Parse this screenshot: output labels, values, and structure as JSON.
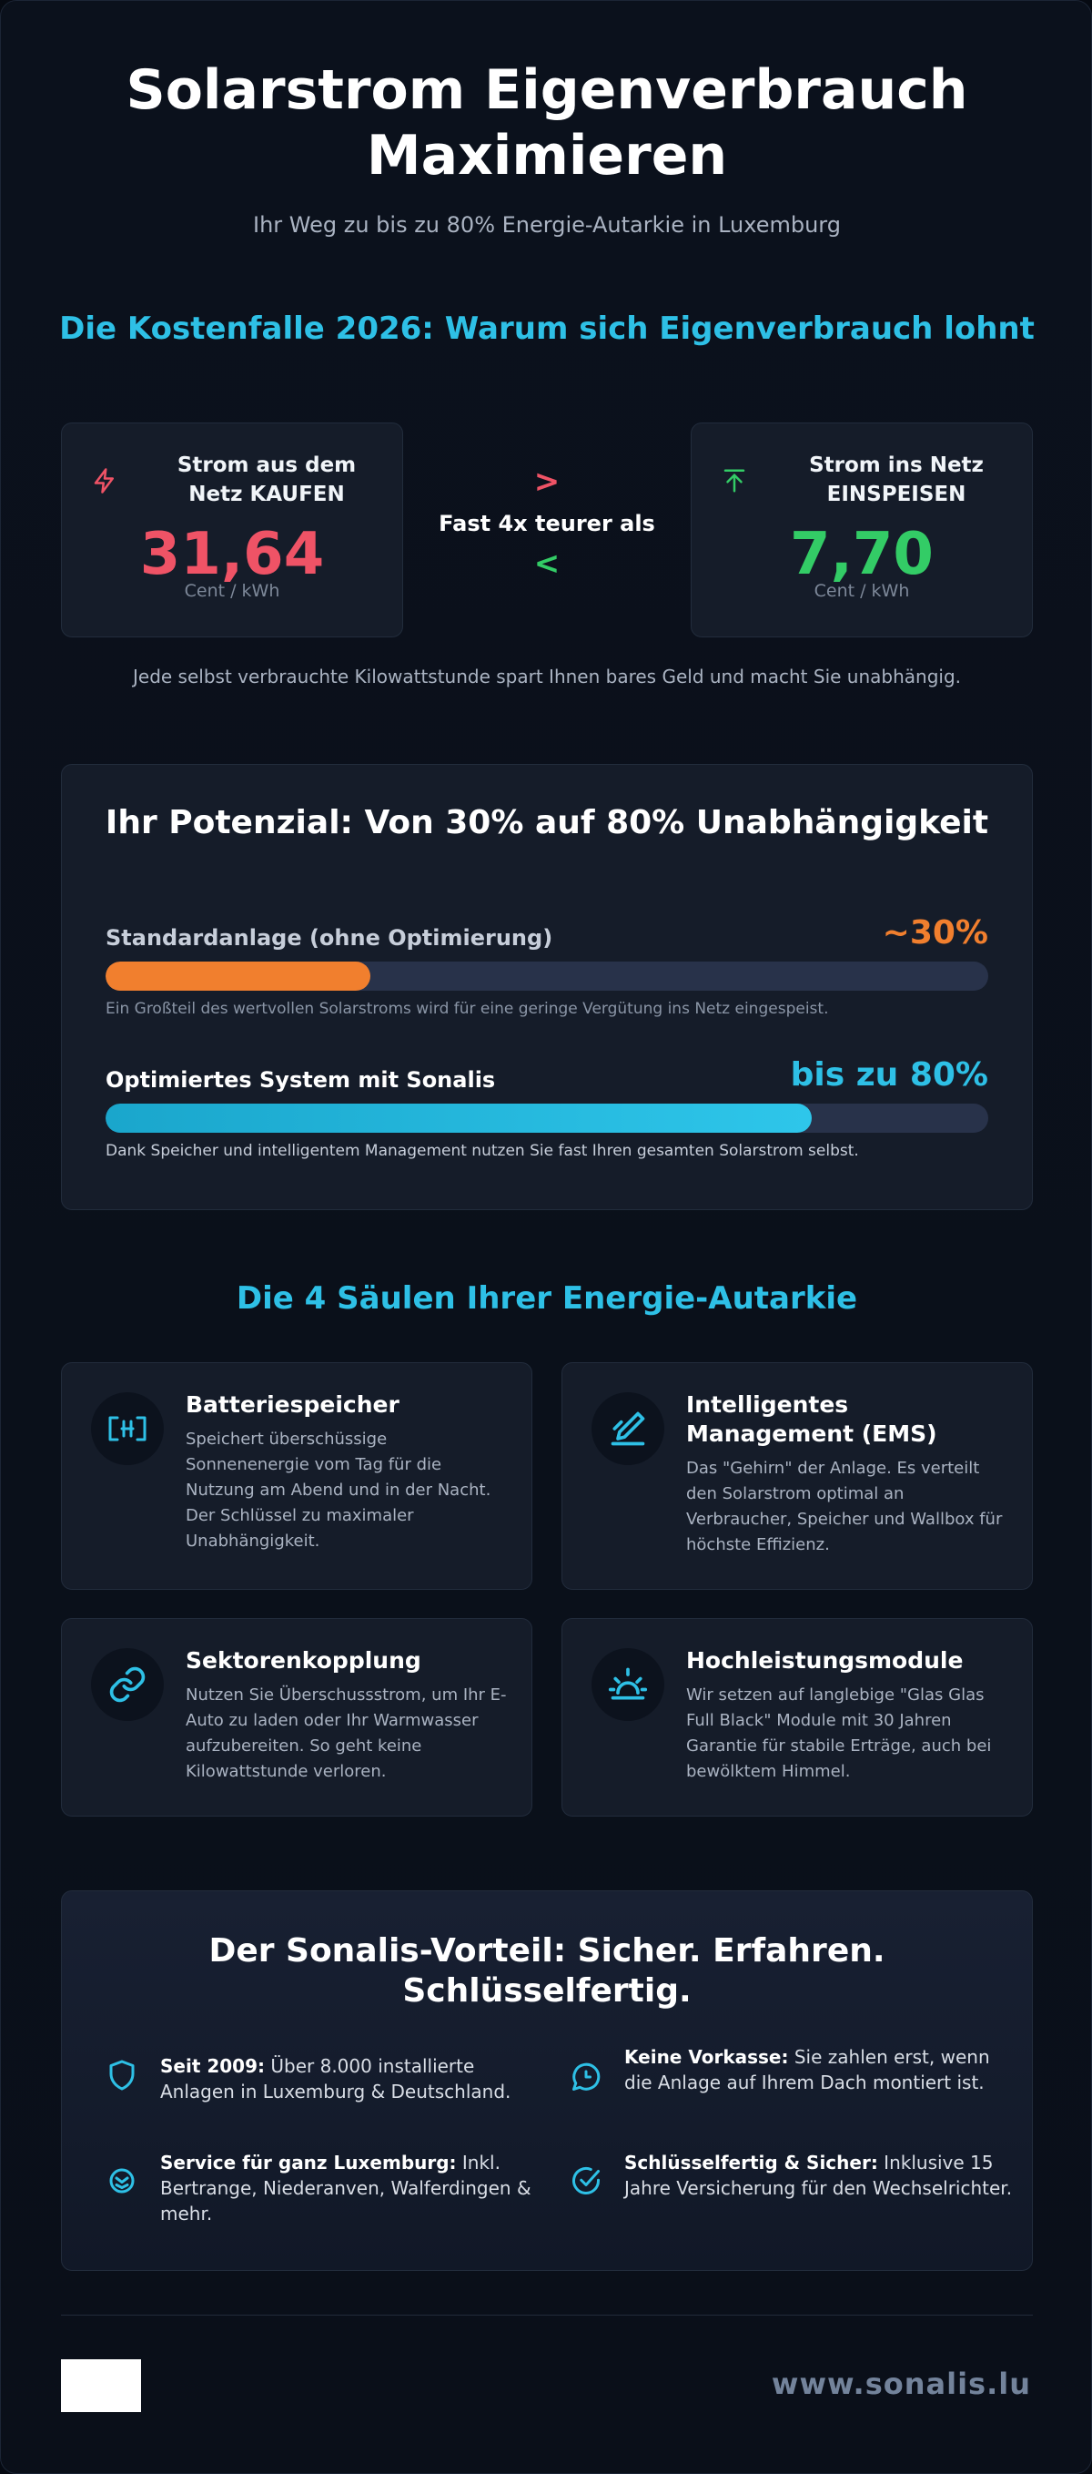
{
  "header": {
    "title": "Solarstrom Eigenverbrauch Maximieren",
    "subtitle": "Ihr Weg zu bis zu 80% Energie-Autarkie in Luxemburg"
  },
  "costs": {
    "heading": "Die Kostenfalle 2026: Warum sich Eigenverbrauch lohnt",
    "buy": {
      "label": "Strom aus dem Netz KAUFEN",
      "value": "31,64",
      "unit": "Cent / kWh",
      "icon": "lightning-icon",
      "color": "#ef5366"
    },
    "sell": {
      "label": "Strom ins Netz EINSPEISEN",
      "value": "7,70",
      "unit": "Cent / kWh",
      "icon": "upload-arrow-icon",
      "color": "#33cc66"
    },
    "comparison": "Fast 4x teurer als",
    "greater_symbol": ">",
    "less_symbol": "<",
    "note": "Jede selbst verbrauchte Kilowattstunde spart Ihnen bares Geld und macht Sie unabhängig."
  },
  "potential": {
    "title": "Ihr Potenzial: Von 30% auf 80% Unabhängigkeit",
    "standard": {
      "label": "Standardanlage (ohne Optimierung)",
      "percent_label": "~30%",
      "level": 0.3,
      "color": "#f17f2e",
      "description": "Ein Großteil des wertvollen Solarstroms wird für eine geringe Vergütung ins Netz eingespeist."
    },
    "optimized": {
      "label": "Optimiertes System mit Sonalis",
      "percent_label": "bis zu 80%",
      "level": 0.8,
      "color": "#2ec0e6",
      "description": "Dank Speicher und intelligentem Management nutzen Sie fast Ihren gesamten Solarstrom selbst."
    }
  },
  "pillars": {
    "heading": "Die 4 Säulen Ihrer Energie-Autarkie",
    "items": [
      {
        "title": "Batteriespeicher",
        "description": "Speichert überschüssige Sonnenenergie vom Tag für die Nutzung am Abend und in der Nacht. Der Schlüssel zu maximaler Unabhängigkeit.",
        "icon": "battery-icon"
      },
      {
        "title": "Intelligentes Management (EMS)",
        "description": "Das \"Gehirn\" der Anlage. Es verteilt den Solarstrom optimal an Verbraucher, Speicher und Wallbox für höchste Effizienz.",
        "icon": "edit-pen-icon"
      },
      {
        "title": "Sektorenkopplung",
        "description": "Nutzen Sie Überschussstrom, um Ihr E-Auto zu laden oder Ihr Warmwasser aufzubereiten. So geht keine Kilowattstunde verloren.",
        "icon": "link-icon"
      },
      {
        "title": "Hochleistungsmodule",
        "description": "Wir setzen auf langlebige \"Glas Glas Full Black\" Module mit 30 Jahren Garantie für stabile Erträge, auch bei bewölktem Himmel.",
        "icon": "sunrise-icon"
      }
    ]
  },
  "advantages": {
    "title": "Der Sonalis-Vorteil: Sicher. Erfahren. Schlüsselfertig.",
    "items": [
      {
        "bold": "Seit 2009:",
        "text": " Über 8.000 installierte Anlagen in Luxemburg & Deutschland.",
        "icon": "shield-icon"
      },
      {
        "bold": "Keine Vorkasse:",
        "text": " Sie zahlen erst, wenn die Anlage auf Ihrem Dach montiert ist.",
        "icon": "chat-clock-icon"
      },
      {
        "bold": "Service für ganz Luxemburg:",
        "text": " Inkl. Bertrange, Niederanven, Walferdingen & mehr.",
        "icon": "location-badge-icon"
      },
      {
        "bold": "Schlüsselfertig & Sicher:",
        "text": " Inklusive 15 Jahre Versicherung für den Wechselrichter.",
        "icon": "check-circle-icon"
      }
    ]
  },
  "footer": {
    "url": "www.sonalis.lu"
  }
}
